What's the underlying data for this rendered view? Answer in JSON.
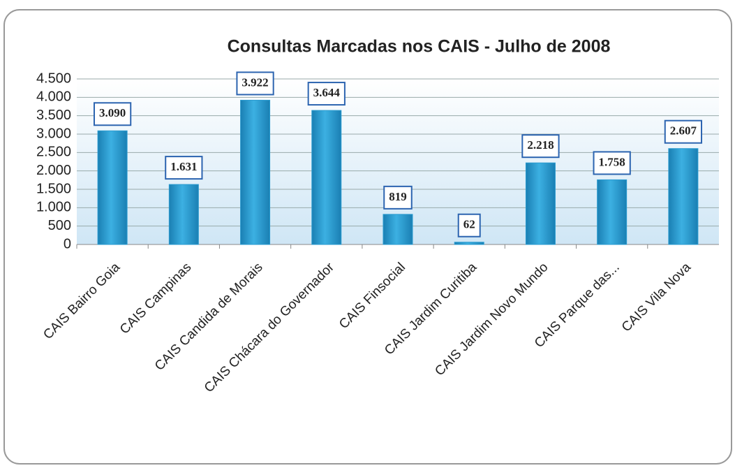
{
  "chart_data": {
    "type": "bar",
    "title": "Consultas Marcadas nos CAIS - Julho de 2008",
    "categories": [
      "CAIS Bairro Goia",
      "CAIS Campinas",
      "CAIS Candida de Morais",
      "CAIS Chácara do Governador",
      "CAIS Finsocial",
      "CAIS Jardim Curitiba",
      "CAIS Jardim Novo Mundo",
      "CAIS Parque das...",
      "CAIS Vila Nova"
    ],
    "values": [
      3090,
      1631,
      3922,
      3644,
      819,
      62,
      2218,
      1758,
      2607
    ],
    "value_labels": [
      "3.090",
      "1.631",
      "3.922",
      "3.644",
      "819",
      "62",
      "2.218",
      "1.758",
      "2.607"
    ],
    "color": "#2a9bd0",
    "ylim": [
      0,
      4500
    ],
    "yticks": [
      0,
      500,
      {
        "value": 1000,
        "label": "1.000"
      },
      {
        "value": 1500,
        "label": "1.500"
      },
      {
        "value": 2000,
        "label": "2.000"
      },
      {
        "value": 2500,
        "label": "2.500"
      },
      {
        "value": 3000,
        "label": "3.000"
      },
      {
        "value": 3500,
        "label": "3.500"
      },
      {
        "value": 4000,
        "label": "4.000"
      },
      {
        "value": 4500,
        "label": "4.500"
      }
    ],
    "grid": true
  }
}
